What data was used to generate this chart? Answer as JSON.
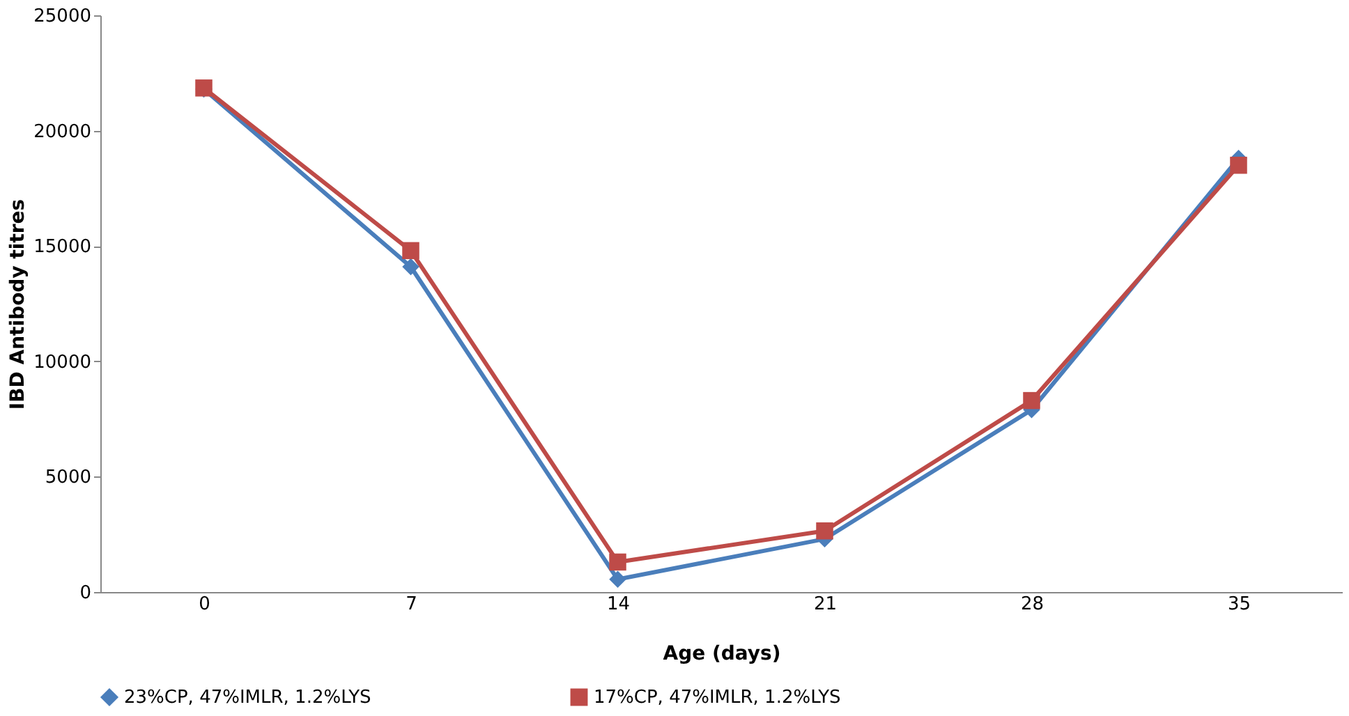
{
  "chart_data": {
    "type": "line",
    "xlabel": "Age (days)",
    "ylabel": "IBD  Antibody titres",
    "categories": [
      "0",
      "7",
      "14",
      "21",
      "28",
      "35"
    ],
    "series": [
      {
        "name": "23%CP, 47%IMLR, 1.2%LYS",
        "color": "#4a7ebb",
        "marker": "diamond",
        "values": [
          21800,
          14100,
          550,
          2300,
          7900,
          18800
        ]
      },
      {
        "name": "17%CP, 47%IMLR, 1.2%LYS",
        "color": "#be4b48",
        "marker": "square",
        "values": [
          21850,
          14800,
          1300,
          2650,
          8300,
          18500
        ]
      }
    ],
    "ylim": [
      0,
      25000
    ],
    "yticks": [
      0,
      5000,
      10000,
      15000,
      20000,
      25000
    ],
    "grid": false,
    "legend": "bottom",
    "line_style": "solid"
  }
}
